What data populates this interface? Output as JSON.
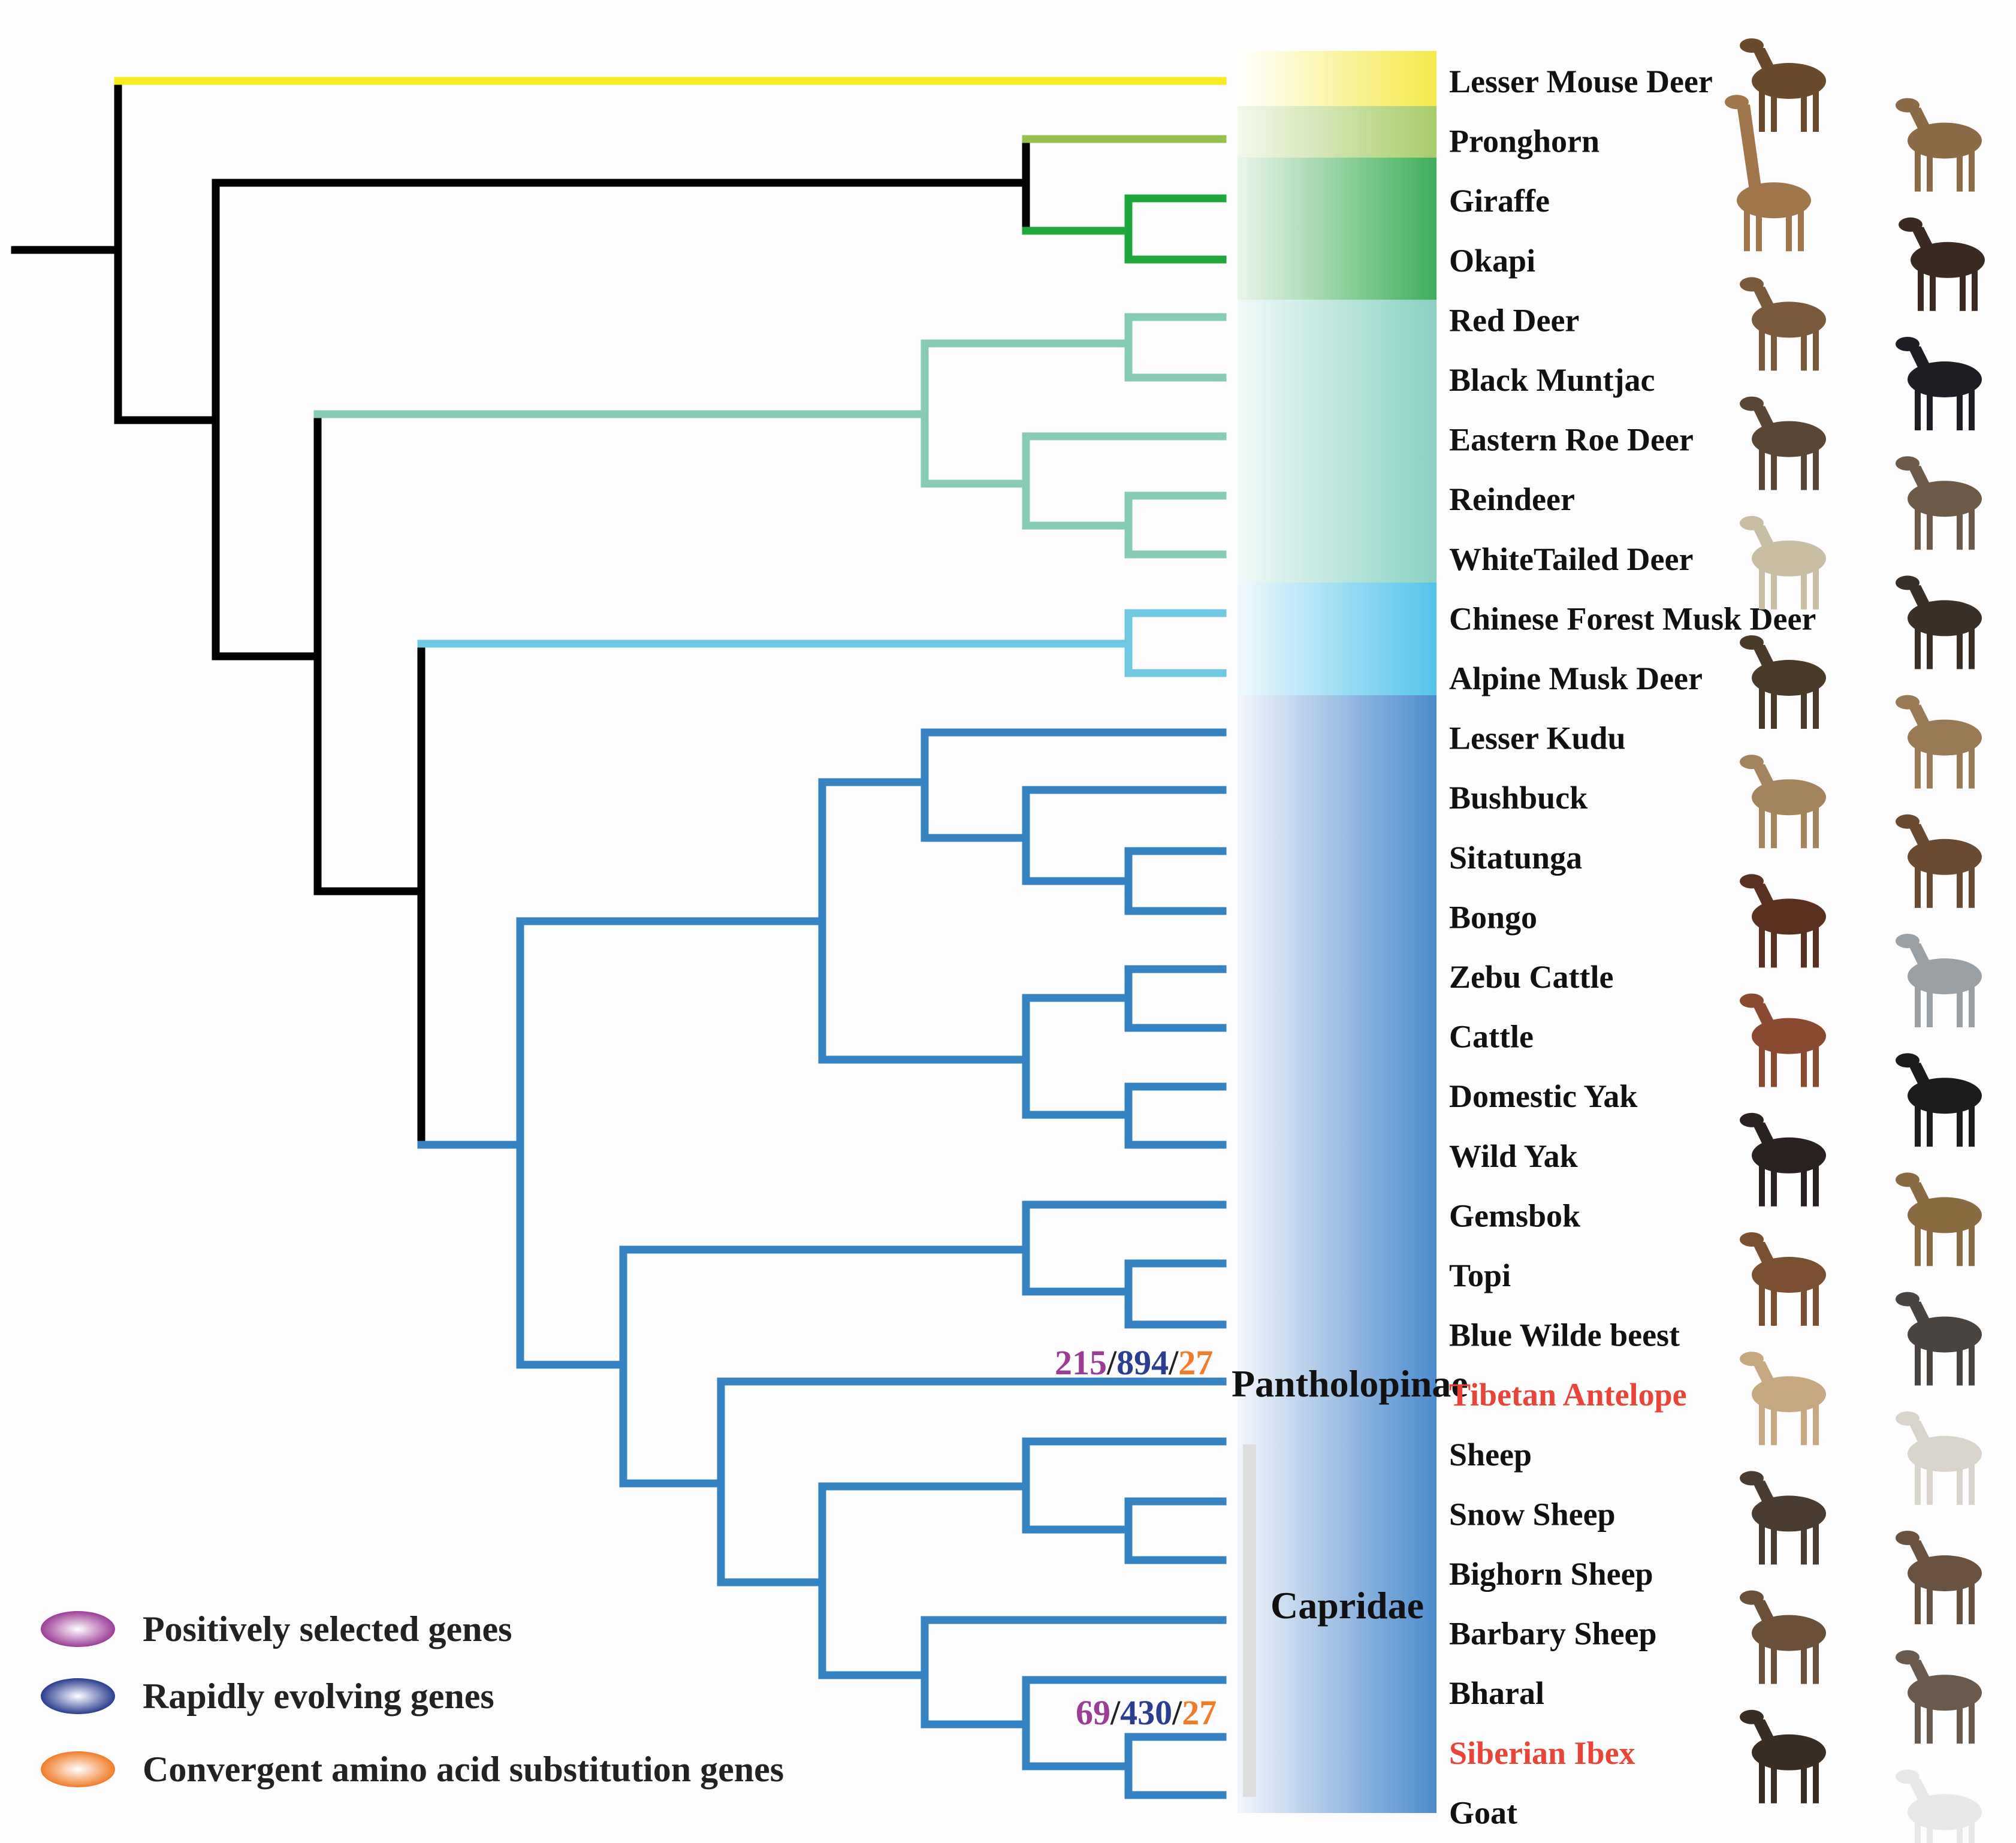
{
  "colors": {
    "root": "#000000",
    "tragulidae": "#f5e94a",
    "tragulidae_branch": "#f7ea1f",
    "antilocapridae": "#a7cc6a",
    "antilocapridae_branch": "#98c24f",
    "giraffidae": "#3fae5a",
    "giraffidae_branch": "#1ea83b",
    "cervidae": "#8ad1c3",
    "cervidae_branch": "#86cbb4",
    "moschidae": "#52c3ea",
    "moschidae_branch": "#6fc7e2",
    "bovidae": "#4c8bcc",
    "bovidae_branch": "#3683c3",
    "highlight_text": "#e8443a",
    "positively_selected": "#9b3d97",
    "rapidly_evolving": "#2a3d8f",
    "convergent": "#f07c2a",
    "capridae_bar": "#dedede"
  },
  "taxa": [
    {
      "name": "Lesser Mouse Deer",
      "highlight": false
    },
    {
      "name": "Pronghorn",
      "highlight": false
    },
    {
      "name": "Giraffe",
      "highlight": false
    },
    {
      "name": "Okapi",
      "highlight": false
    },
    {
      "name": "Red Deer",
      "highlight": false
    },
    {
      "name": "Black Muntjac",
      "highlight": false
    },
    {
      "name": "Eastern Roe Deer",
      "highlight": false
    },
    {
      "name": "Reindeer",
      "highlight": false
    },
    {
      "name": "WhiteTailed Deer",
      "highlight": false
    },
    {
      "name": "Chinese Forest Musk Deer",
      "highlight": false
    },
    {
      "name": "Alpine Musk Deer",
      "highlight": false
    },
    {
      "name": "Lesser Kudu",
      "highlight": false
    },
    {
      "name": "Bushbuck",
      "highlight": false
    },
    {
      "name": "Sitatunga",
      "highlight": false
    },
    {
      "name": "Bongo",
      "highlight": false
    },
    {
      "name": "Zebu Cattle",
      "highlight": false
    },
    {
      "name": "Cattle",
      "highlight": false
    },
    {
      "name": "Domestic Yak",
      "highlight": false
    },
    {
      "name": "Wild Yak",
      "highlight": false
    },
    {
      "name": "Gemsbok",
      "highlight": false
    },
    {
      "name": "Topi",
      "highlight": false
    },
    {
      "name": "Blue Wilde beest",
      "highlight": false
    },
    {
      "name": "Tibetan Antelope",
      "highlight": true
    },
    {
      "name": "Sheep",
      "highlight": false
    },
    {
      "name": "Snow Sheep",
      "highlight": false
    },
    {
      "name": "Bighorn Sheep",
      "highlight": false
    },
    {
      "name": "Barbary Sheep",
      "highlight": false
    },
    {
      "name": "Bharal",
      "highlight": false
    },
    {
      "name": "Siberian Ibex",
      "highlight": true
    },
    {
      "name": "Goat",
      "highlight": false
    }
  ],
  "group_labels": {
    "pantholopinae": "Pantholopinae",
    "capridae": "Capridae"
  },
  "annotations": {
    "tibetan_antelope": {
      "positive": "215",
      "rapid": "894",
      "convergent": "27",
      "sep": "/"
    },
    "siberian_ibex": {
      "positive": "69",
      "rapid": "430",
      "convergent": "27",
      "sep": "/"
    }
  },
  "legend": [
    {
      "label": "Positively selected genes",
      "color_key": "positively_selected"
    },
    {
      "label": "Rapidly evolving genes",
      "color_key": "rapidly_evolving"
    },
    {
      "label": "Convergent amino acid substitution genes",
      "color_key": "convergent"
    }
  ],
  "animal_icons": [
    "mouse-deer-icon",
    "pronghorn-icon",
    "giraffe-icon",
    "okapi-icon",
    "red-deer-icon",
    "black-muntjac-icon",
    "roe-deer-icon",
    "reindeer-icon",
    "white-tailed-deer-icon",
    "forest-musk-deer-icon",
    "alpine-musk-deer-icon",
    "lesser-kudu-icon",
    "bushbuck-icon",
    "sitatunga-icon",
    "bongo-icon",
    "zebu-icon",
    "cattle-icon",
    "domestic-yak-icon",
    "wild-yak-icon",
    "gemsbok-icon",
    "topi-icon",
    "wildebeest-icon",
    "tibetan-antelope-icon",
    "sheep-icon",
    "snow-sheep-icon",
    "bighorn-icon",
    "barbary-sheep-icon",
    "bharal-icon",
    "siberian-ibex-icon",
    "goat-icon"
  ]
}
